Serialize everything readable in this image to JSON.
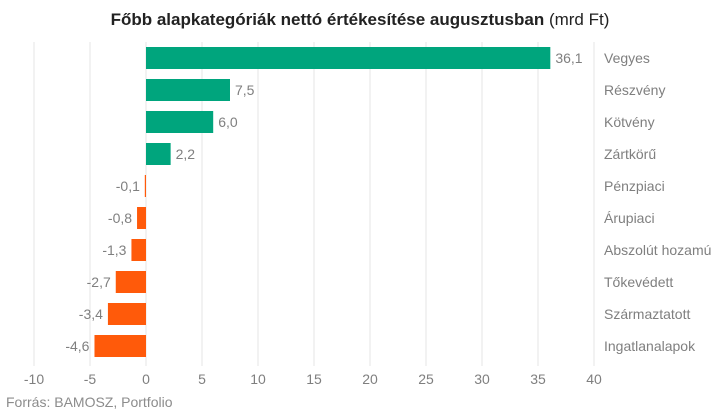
{
  "chart_data": {
    "type": "bar",
    "orientation": "horizontal",
    "title": "Főbb alapkategóriák nettó értékesítése augusztusban",
    "title_unit": "(mrd Ft)",
    "categories": [
      "Vegyes",
      "Részvény",
      "Kötvény",
      "Zártkörű",
      "Pénzpiaci",
      "Árupiaci",
      "Abszolút hozamú",
      "Tőkevédett",
      "Származtatott",
      "Ingatlanalapok"
    ],
    "values": [
      36.1,
      7.5,
      6.0,
      2.2,
      -0.1,
      -0.8,
      -1.3,
      -2.7,
      -3.4,
      -4.6
    ],
    "value_labels": [
      "36,1",
      "7,5",
      "6,0",
      "2,2",
      "-0,1",
      "-0,8",
      "-1,3",
      "-2,7",
      "-3,4",
      "-4,6"
    ],
    "xlim": [
      -10,
      40
    ],
    "xticks": [
      -10,
      -5,
      0,
      5,
      10,
      15,
      20,
      25,
      30,
      35,
      40
    ],
    "grid": "vertical",
    "legend": "none",
    "colors": {
      "positive": "#00a57d",
      "negative": "#ff5a0a",
      "grid": "#e6e6e6",
      "label": "#7f7f7f"
    }
  },
  "source": "Forrás: BAMOSZ, Portfolio"
}
